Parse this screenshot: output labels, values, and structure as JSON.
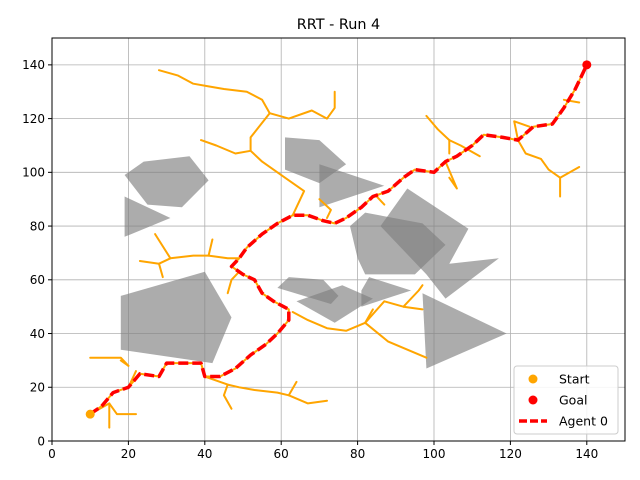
{
  "chart_data": {
    "type": "scatter",
    "title": "RRT - Run 4",
    "xlabel": "",
    "ylabel": "",
    "xlim": [
      0,
      150
    ],
    "ylim": [
      0,
      150
    ],
    "x_ticks": [
      0,
      20,
      40,
      60,
      80,
      100,
      120,
      140
    ],
    "y_ticks": [
      0,
      20,
      40,
      60,
      80,
      100,
      120,
      140
    ],
    "grid": true,
    "legend_position": "bottom-right",
    "colors": {
      "tree": "#FFA500",
      "path": "#FF0000",
      "obstacle": "#808080",
      "goal": "#FF0000",
      "start": "#FFA500"
    },
    "legend": [
      {
        "label": "Start",
        "kind": "marker",
        "color": "#FFA500"
      },
      {
        "label": "Goal",
        "kind": "marker",
        "color": "#FF0000"
      },
      {
        "label": "Agent 0",
        "kind": "dashed-line",
        "color": "#FF0000"
      }
    ],
    "start": [
      10,
      10
    ],
    "goal": [
      140,
      140
    ],
    "obstacles": [
      [
        [
          19,
          99
        ],
        [
          24,
          104
        ],
        [
          36,
          106
        ],
        [
          41,
          97
        ],
        [
          34,
          87
        ],
        [
          25,
          88
        ]
      ],
      [
        [
          19,
          91
        ],
        [
          19,
          76
        ],
        [
          31,
          83
        ]
      ],
      [
        [
          61,
          113
        ],
        [
          61,
          101
        ],
        [
          70,
          96
        ],
        [
          77,
          103
        ],
        [
          70,
          112
        ]
      ],
      [
        [
          70,
          103
        ],
        [
          70,
          87
        ],
        [
          87,
          95
        ]
      ],
      [
        [
          82,
          85
        ],
        [
          78,
          80
        ],
        [
          80,
          68
        ],
        [
          82,
          62
        ],
        [
          95,
          62
        ],
        [
          103,
          73
        ],
        [
          97,
          81
        ]
      ],
      [
        [
          86,
          80
        ],
        [
          93,
          94
        ],
        [
          109,
          79
        ],
        [
          104,
          66
        ],
        [
          117,
          68
        ],
        [
          103,
          53
        ],
        [
          98,
          62
        ]
      ],
      [
        [
          47,
          46
        ],
        [
          40,
          63
        ],
        [
          18,
          54
        ],
        [
          18,
          34
        ],
        [
          42,
          29
        ]
      ],
      [
        [
          59,
          57
        ],
        [
          62,
          61
        ],
        [
          71,
          60
        ],
        [
          75,
          54
        ],
        [
          73,
          51
        ]
      ],
      [
        [
          64,
          52
        ],
        [
          76,
          58
        ],
        [
          84,
          53
        ],
        [
          74,
          44
        ]
      ],
      [
        [
          81,
          56
        ],
        [
          83,
          61
        ],
        [
          94,
          56
        ],
        [
          81,
          50
        ]
      ],
      [
        [
          97,
          55
        ],
        [
          98,
          27
        ],
        [
          119,
          40
        ]
      ]
    ],
    "tree_branches": [
      [
        [
          10,
          10
        ],
        [
          15,
          14
        ],
        [
          17,
          10
        ],
        [
          22,
          10
        ]
      ],
      [
        [
          15,
          14
        ],
        [
          15,
          5
        ]
      ],
      [
        [
          20,
          20
        ],
        [
          22,
          26
        ]
      ],
      [
        [
          20,
          28
        ],
        [
          18,
          31
        ],
        [
          10,
          31
        ]
      ],
      [
        [
          20,
          28
        ],
        [
          18,
          30
        ]
      ],
      [
        [
          40,
          24
        ],
        [
          46,
          21
        ],
        [
          49,
          20
        ],
        [
          53,
          19
        ],
        [
          59,
          18
        ],
        [
          62,
          17
        ],
        [
          67,
          14
        ],
        [
          72,
          15
        ]
      ],
      [
        [
          62,
          17
        ],
        [
          64,
          22
        ]
      ],
      [
        [
          46,
          21
        ],
        [
          45,
          17
        ],
        [
          47,
          12
        ]
      ],
      [
        [
          63,
          48
        ],
        [
          67,
          45
        ],
        [
          72,
          42
        ],
        [
          77,
          41
        ],
        [
          82,
          44
        ],
        [
          87,
          52
        ],
        [
          92,
          50
        ],
        [
          97,
          49
        ]
      ],
      [
        [
          82,
          44
        ],
        [
          88,
          37
        ],
        [
          98,
          31
        ]
      ],
      [
        [
          82,
          44
        ],
        [
          84,
          49
        ]
      ],
      [
        [
          92,
          50
        ],
        [
          96,
          56
        ],
        [
          97,
          58
        ]
      ],
      [
        [
          49,
          63
        ],
        [
          47,
          60
        ],
        [
          46,
          55
        ]
      ],
      [
        [
          49,
          68
        ],
        [
          46,
          68
        ],
        [
          41,
          69
        ],
        [
          37,
          69
        ],
        [
          31,
          68
        ],
        [
          28,
          66
        ],
        [
          23,
          67
        ]
      ],
      [
        [
          28,
          66
        ],
        [
          29,
          61
        ]
      ],
      [
        [
          31,
          68
        ],
        [
          27,
          77
        ]
      ],
      [
        [
          41,
          69
        ],
        [
          42,
          75
        ]
      ],
      [
        [
          63,
          84
        ],
        [
          66,
          93
        ],
        [
          61,
          98
        ],
        [
          55,
          104
        ],
        [
          52,
          108
        ],
        [
          48,
          107
        ],
        [
          43,
          110
        ],
        [
          39,
          112
        ]
      ],
      [
        [
          52,
          108
        ],
        [
          52,
          113
        ],
        [
          57,
          122
        ],
        [
          62,
          120
        ],
        [
          68,
          123
        ],
        [
          72,
          120
        ],
        [
          74,
          124
        ],
        [
          74,
          130
        ]
      ],
      [
        [
          57,
          122
        ],
        [
          55,
          127
        ],
        [
          51,
          130
        ],
        [
          45,
          131
        ],
        [
          41,
          132
        ],
        [
          37,
          133
        ],
        [
          33,
          136
        ],
        [
          28,
          138
        ]
      ],
      [
        [
          72,
          83
        ],
        [
          73,
          86
        ],
        [
          70,
          90
        ]
      ],
      [
        [
          85,
          91
        ],
        [
          87,
          88
        ]
      ],
      [
        [
          104,
          107
        ],
        [
          104,
          112
        ],
        [
          101,
          116
        ],
        [
          98,
          121
        ]
      ],
      [
        [
          104,
          112
        ],
        [
          107,
          110
        ],
        [
          112,
          106
        ]
      ],
      [
        [
          103,
          104
        ],
        [
          106,
          94
        ],
        [
          104,
          98
        ]
      ],
      [
        [
          122,
          112
        ],
        [
          124,
          107
        ],
        [
          128,
          105
        ],
        [
          130,
          101
        ],
        [
          133,
          98
        ],
        [
          138,
          102
        ]
      ],
      [
        [
          133,
          98
        ],
        [
          133,
          91
        ]
      ],
      [
        [
          122,
          112
        ],
        [
          121,
          119
        ],
        [
          125,
          117
        ]
      ],
      [
        [
          134,
          127
        ],
        [
          138,
          126
        ]
      ]
    ],
    "agent_path": [
      [
        10,
        10
      ],
      [
        13,
        13
      ],
      [
        16,
        18
      ],
      [
        20,
        20
      ],
      [
        23,
        25
      ],
      [
        28,
        24
      ],
      [
        30,
        29
      ],
      [
        39,
        29
      ],
      [
        40,
        24
      ],
      [
        44,
        24
      ],
      [
        48,
        27
      ],
      [
        52,
        32
      ],
      [
        56,
        36
      ],
      [
        59,
        40
      ],
      [
        62,
        45
      ],
      [
        62,
        49
      ],
      [
        58,
        52
      ],
      [
        55,
        55
      ],
      [
        53,
        60
      ],
      [
        50,
        62
      ],
      [
        47,
        65
      ],
      [
        49,
        68
      ],
      [
        51,
        72
      ],
      [
        55,
        77
      ],
      [
        59,
        81
      ],
      [
        63,
        84
      ],
      [
        67,
        84
      ],
      [
        71,
        82
      ],
      [
        74,
        81
      ],
      [
        77,
        83
      ],
      [
        81,
        87
      ],
      [
        84,
        91
      ],
      [
        88,
        93
      ],
      [
        92,
        98
      ],
      [
        95,
        101
      ],
      [
        100,
        100
      ],
      [
        103,
        104
      ],
      [
        106,
        106
      ],
      [
        110,
        110
      ],
      [
        113,
        114
      ],
      [
        118,
        113
      ],
      [
        122,
        112
      ],
      [
        126,
        117
      ],
      [
        131,
        118
      ],
      [
        134,
        124
      ],
      [
        137,
        131
      ],
      [
        140,
        140
      ]
    ]
  }
}
